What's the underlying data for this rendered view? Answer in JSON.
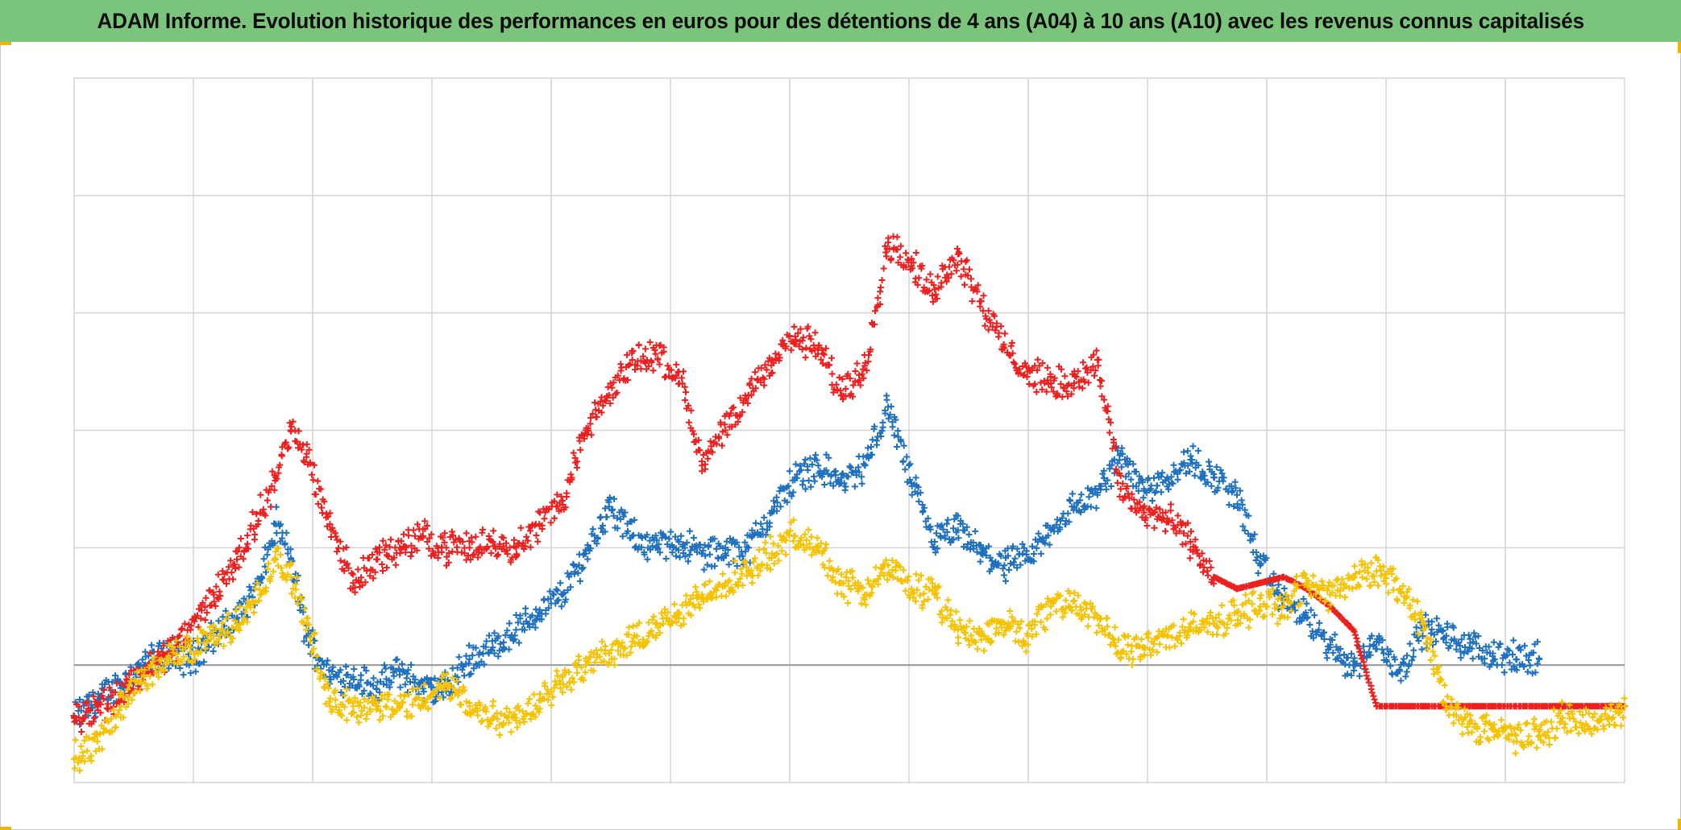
{
  "title": "ADAM Informe. Evolution historique des performances en euros pour des détentions de 4 ans (A04) à 10 ans (A10) avec les revenus connus capitalisés",
  "colors": {
    "banner": "#7ac47c",
    "grid": "#d4d4d4",
    "baseline": "#9a9a9a",
    "corner": "#f0b400"
  },
  "chart_data": {
    "type": "scatter",
    "marker": "plus",
    "x": [
      0,
      0.015,
      0.03,
      0.045,
      0.06,
      0.075,
      0.09,
      0.105,
      0.12,
      0.13,
      0.14,
      0.15,
      0.165,
      0.18,
      0.195,
      0.21,
      0.225,
      0.24,
      0.255,
      0.27,
      0.285,
      0.3,
      0.315,
      0.33,
      0.345,
      0.36,
      0.375,
      0.39,
      0.405,
      0.42,
      0.435,
      0.45,
      0.465,
      0.48,
      0.495,
      0.51,
      0.525,
      0.54,
      0.555,
      0.57,
      0.585,
      0.6,
      0.615,
      0.63,
      0.645,
      0.66,
      0.675,
      0.69,
      0.705,
      0.72,
      0.735,
      0.75,
      0.765,
      0.78,
      0.795,
      0.81,
      0.825,
      0.84,
      0.855,
      0.87,
      0.885,
      0.9,
      0.915,
      0.93,
      0.945,
      0.96,
      0.975,
      0.99,
      1.0
    ],
    "xlim": [
      0,
      1
    ],
    "ylim": [
      -1,
      5
    ],
    "baseline": 0,
    "grid": true,
    "legend": "none",
    "series": [
      {
        "color": "#1f70bf",
        "values": [
          -0.45,
          -0.3,
          -0.15,
          0.0,
          0.1,
          0.05,
          0.25,
          0.4,
          0.7,
          1.2,
          0.9,
          0.25,
          -0.1,
          -0.1,
          -0.2,
          -0.05,
          -0.2,
          -0.2,
          0.05,
          0.15,
          0.3,
          0.45,
          0.6,
          0.95,
          1.35,
          1.1,
          1.0,
          1.05,
          0.95,
          0.95,
          1.0,
          1.3,
          1.6,
          1.7,
          1.55,
          1.7,
          2.2,
          1.55,
          1.05,
          1.15,
          0.95,
          0.85,
          0.9,
          1.15,
          1.35,
          1.45,
          1.8,
          1.5,
          1.6,
          1.75,
          1.6,
          1.45,
          0.85,
          0.55,
          0.4,
          0.15,
          0.0,
          0.2,
          -0.05,
          0.3,
          0.25,
          0.15,
          0.1,
          0.05,
          0.05,
          null,
          null,
          null,
          null
        ]
      },
      {
        "color": "#ee1f1f",
        "values": [
          -0.45,
          -0.35,
          -0.25,
          -0.05,
          0.1,
          0.3,
          0.6,
          0.9,
          1.3,
          1.6,
          2.0,
          1.8,
          1.2,
          0.7,
          0.9,
          1.0,
          1.1,
          1.0,
          1.0,
          1.05,
          1.0,
          1.2,
          1.4,
          2.0,
          2.3,
          2.6,
          2.65,
          2.5,
          1.7,
          2.0,
          2.3,
          2.6,
          2.8,
          2.7,
          2.3,
          2.55,
          3.6,
          3.4,
          3.2,
          3.5,
          3.1,
          2.7,
          2.5,
          2.4,
          2.4,
          2.6,
          1.5,
          1.3,
          1.25,
          1.05,
          0.75,
          0.65,
          0.7,
          0.75,
          0.65,
          0.5,
          0.3,
          -0.35,
          -0.35,
          -0.35,
          -0.35,
          -0.35,
          -0.35,
          -0.35,
          -0.35,
          -0.35,
          -0.35,
          -0.35,
          -0.35
        ]
      },
      {
        "color": "#f5c200",
        "values": [
          -0.8,
          -0.65,
          -0.35,
          -0.1,
          0.05,
          0.15,
          0.25,
          0.35,
          0.6,
          0.9,
          0.75,
          0.4,
          -0.35,
          -0.35,
          -0.35,
          -0.35,
          -0.3,
          -0.15,
          -0.35,
          -0.45,
          -0.45,
          -0.3,
          -0.1,
          0.0,
          0.1,
          0.2,
          0.35,
          0.4,
          0.6,
          0.7,
          0.8,
          0.95,
          1.1,
          1.0,
          0.7,
          0.6,
          0.85,
          0.65,
          0.6,
          0.3,
          0.25,
          0.35,
          0.25,
          0.5,
          0.55,
          0.4,
          0.1,
          0.15,
          0.25,
          0.3,
          0.35,
          0.45,
          0.5,
          0.5,
          0.7,
          0.6,
          0.75,
          0.8,
          0.65,
          0.35,
          -0.35,
          -0.5,
          -0.55,
          -0.6,
          -0.6,
          -0.45,
          -0.5,
          -0.45,
          -0.35
        ]
      }
    ]
  }
}
